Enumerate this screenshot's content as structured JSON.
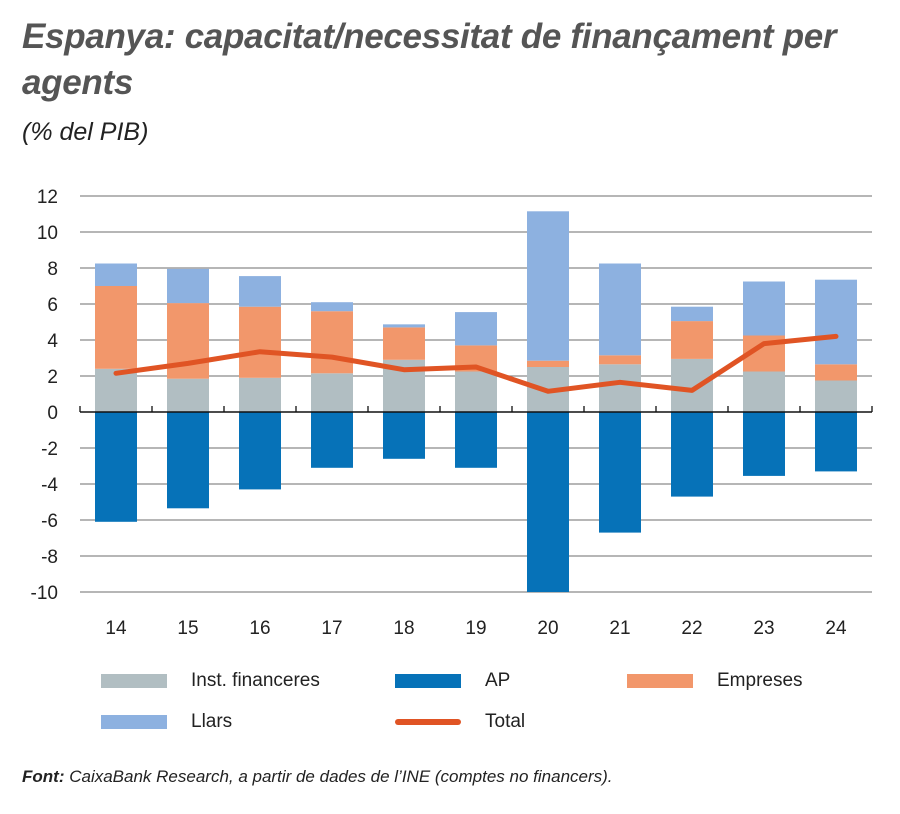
{
  "title": "Espanya: capacitat/necessitat de finançament per agents",
  "subtitle": "(% del PIB)",
  "footer": {
    "label": "Font:",
    "text": " CaixaBank Research, a partir de dades de l’INE (comptes no financers)."
  },
  "chart_data": {
    "type": "bar",
    "stacked": true,
    "categories": [
      "14",
      "15",
      "16",
      "17",
      "18",
      "19",
      "20",
      "21",
      "22",
      "23",
      "24"
    ],
    "ylim": [
      -10,
      12
    ],
    "yticks": [
      -10,
      -8,
      -6,
      -4,
      -2,
      0,
      2,
      4,
      6,
      8,
      10,
      12
    ],
    "grid": true,
    "legend_position": "bottom",
    "series": [
      {
        "name": "Inst. financeres",
        "type": "bar",
        "color": "#b1bec2",
        "values": [
          2.4,
          1.85,
          1.9,
          2.15,
          2.9,
          2.25,
          2.5,
          2.65,
          2.95,
          2.25,
          1.75
        ]
      },
      {
        "name": "AP",
        "type": "bar",
        "color": "#0672b8",
        "values": [
          -6.1,
          -5.35,
          -4.3,
          -3.1,
          -2.6,
          -3.1,
          -10.0,
          -6.7,
          -4.7,
          -3.55,
          -3.3
        ]
      },
      {
        "name": "Empreses",
        "type": "bar",
        "color": "#f2976b",
        "values": [
          4.6,
          4.2,
          3.95,
          3.45,
          1.8,
          1.45,
          0.35,
          0.5,
          2.1,
          2.0,
          0.9
        ]
      },
      {
        "name": "Llars",
        "type": "bar",
        "color": "#8db1e0",
        "values": [
          1.25,
          1.9,
          1.7,
          0.5,
          0.17,
          1.85,
          8.3,
          5.1,
          0.8,
          3.0,
          4.7
        ]
      },
      {
        "name": "Total",
        "type": "line",
        "color": "#e05424",
        "values": [
          2.15,
          2.7,
          3.35,
          3.05,
          2.35,
          2.5,
          1.15,
          1.65,
          1.2,
          3.8,
          4.2
        ]
      }
    ]
  }
}
